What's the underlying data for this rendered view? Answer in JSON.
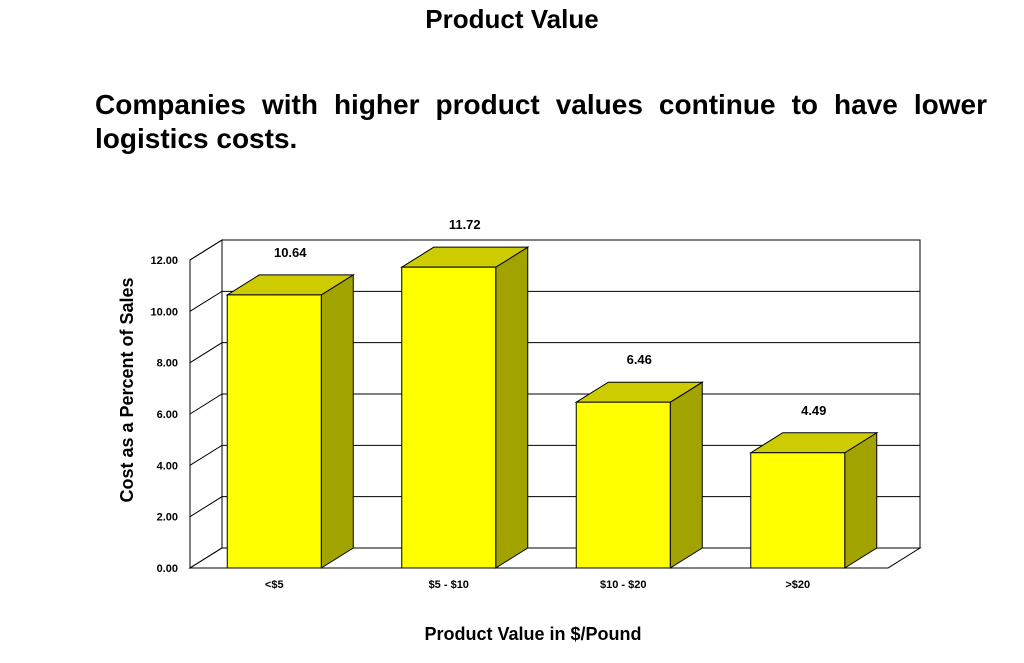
{
  "page": {
    "title": "Product Value",
    "subtitle": "Companies with higher product values continue to have lower logistics costs."
  },
  "chart_data": {
    "type": "bar",
    "categories": [
      "<$5",
      "$5 - $10",
      "$10 - $20",
      ">$20"
    ],
    "values": [
      10.64,
      11.72,
      6.46,
      4.49
    ],
    "data_labels": [
      "10.64",
      "11.72",
      "6.46",
      "4.49"
    ],
    "yticks": [
      "0.00",
      "2.00",
      "4.00",
      "6.00",
      "8.00",
      "10.00",
      "12.00"
    ],
    "ylim": [
      0,
      12
    ],
    "xlabel": "Product Value in $/Pound",
    "ylabel": "Cost as a Percent of Sales",
    "grid": true,
    "three_d": true,
    "colors": {
      "bar_front": "#ffff00",
      "bar_top": "#cccc00",
      "bar_side": "#a3a300",
      "grid": "#000000"
    }
  }
}
